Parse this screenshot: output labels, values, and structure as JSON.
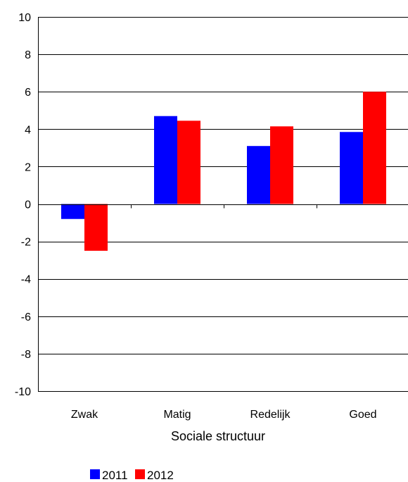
{
  "chart_data": {
    "type": "bar",
    "title": "",
    "xlabel": "Sociale structuur",
    "ylabel": "",
    "categories": [
      "Zwak",
      "Matig",
      "Redelijk",
      "Goed"
    ],
    "series": [
      {
        "name": "2011",
        "values": [
          -0.8,
          4.7,
          3.1,
          3.85
        ],
        "color": "#0000ff"
      },
      {
        "name": "2012",
        "values": [
          -2.5,
          4.45,
          4.15,
          6.0
        ],
        "color": "#ff0000"
      }
    ],
    "ylim": [
      -10,
      10
    ],
    "yticks": [
      "10",
      "8",
      "6",
      "4",
      "2",
      "0",
      "-2",
      "-4",
      "-6",
      "-8",
      "-10"
    ],
    "ytick_values": [
      10,
      8,
      6,
      4,
      2,
      0,
      -2,
      -4,
      -6,
      -8,
      -10
    ],
    "grid": true,
    "legend_position": "bottom-left"
  }
}
